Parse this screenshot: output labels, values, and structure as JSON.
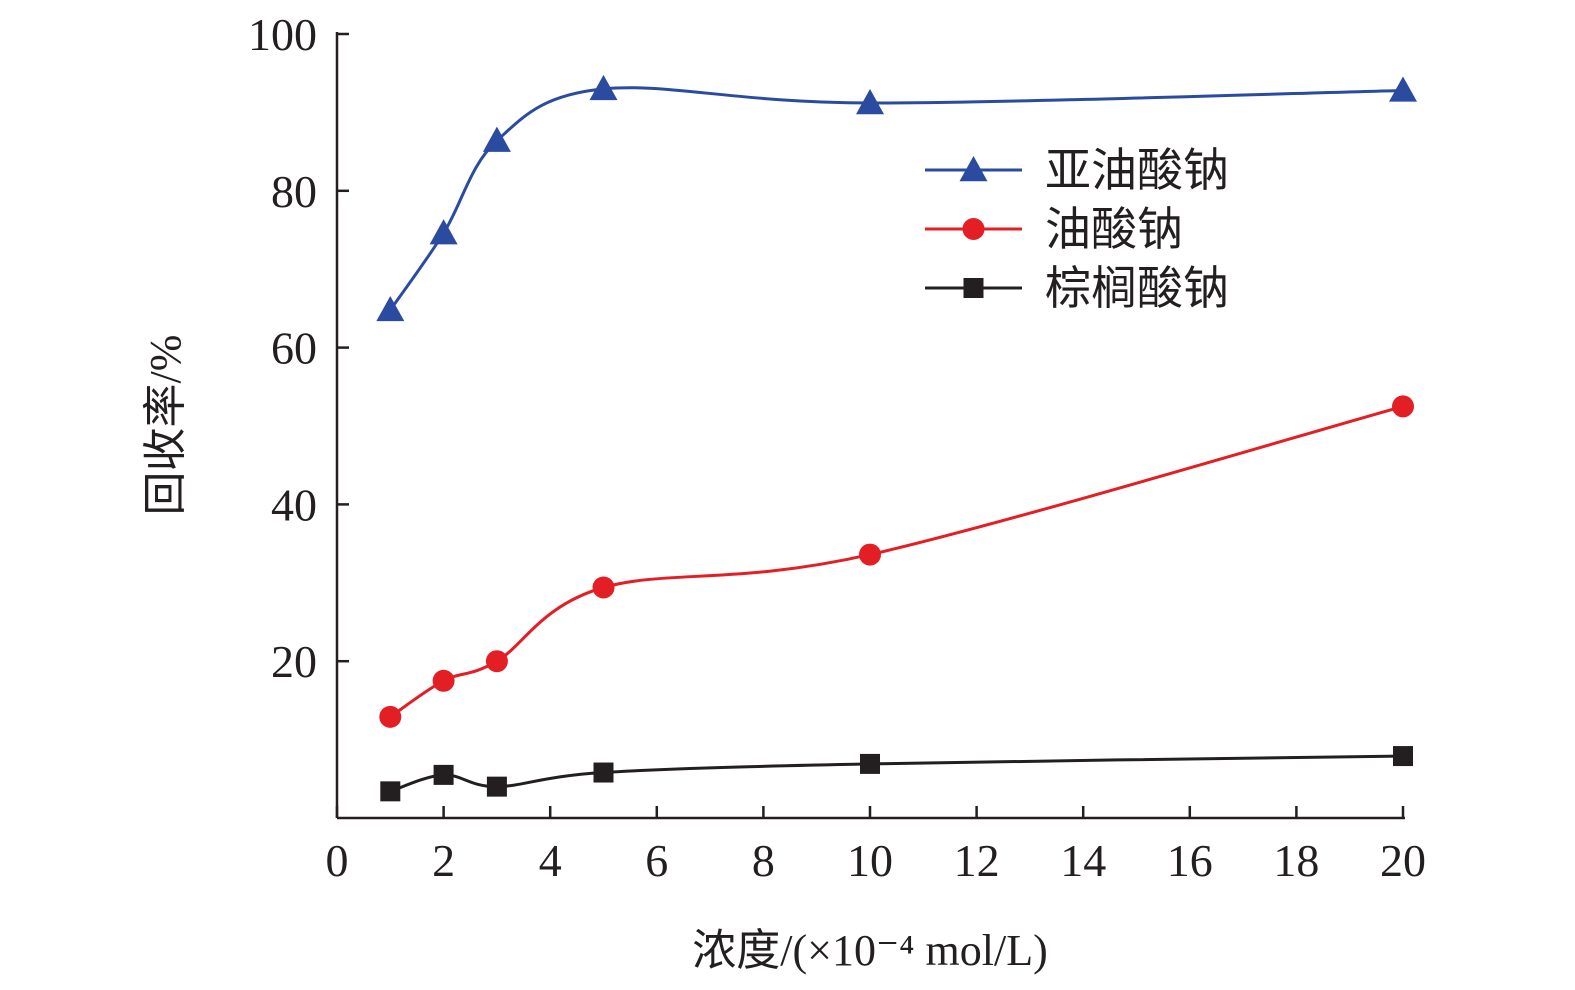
{
  "chart_data": {
    "type": "line",
    "xlabel": "浓度/(×10⁻⁴ mol/L)",
    "ylabel": "回收率/%",
    "xlim": [
      0,
      20
    ],
    "ylim": [
      0,
      100
    ],
    "xticks": [
      0,
      2,
      4,
      6,
      8,
      10,
      12,
      14,
      16,
      18,
      20
    ],
    "yticks": [
      20,
      40,
      60,
      80,
      100
    ],
    "grid": false,
    "legend_position": "top-right",
    "x": [
      1,
      2,
      3,
      5,
      10,
      20
    ],
    "series": [
      {
        "name": "亚油酸钠",
        "marker": "triangle",
        "color": "#2b4ba1",
        "values": [
          64.8,
          74.6,
          86.4,
          93.0,
          91.2,
          92.8
        ]
      },
      {
        "name": "油酸钠",
        "marker": "circle",
        "color": "#e31e24",
        "values": [
          12.9,
          17.5,
          20.0,
          29.4,
          33.6,
          52.5
        ]
      },
      {
        "name": "棕榈酸钠",
        "marker": "square",
        "color": "#231f20",
        "values": [
          3.4,
          5.5,
          4.0,
          5.8,
          6.9,
          7.9
        ]
      }
    ]
  }
}
